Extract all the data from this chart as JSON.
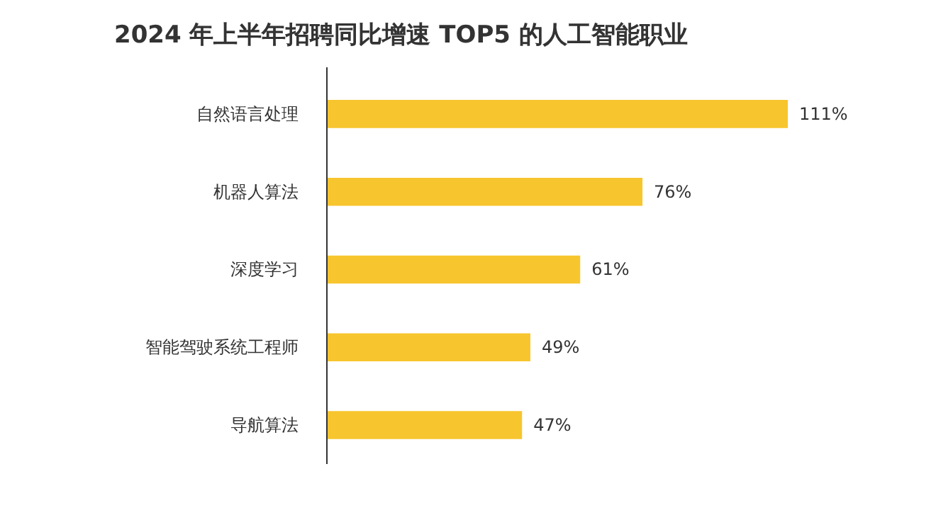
{
  "chart_data": {
    "type": "bar",
    "orientation": "horizontal",
    "title": "2024 年上半年招聘同比增速 TOP5 的人工智能职业",
    "categories": [
      "自然语言处理",
      "机器人算法",
      "深度学习",
      "智能驾驶系统工程师",
      "导航算法"
    ],
    "values": [
      111,
      76,
      61,
      49,
      47
    ],
    "value_labels": [
      "111%",
      "76%",
      "61%",
      "49%",
      "47%"
    ],
    "color": "#f7c52e",
    "grid": false,
    "tick_labels": "y"
  }
}
